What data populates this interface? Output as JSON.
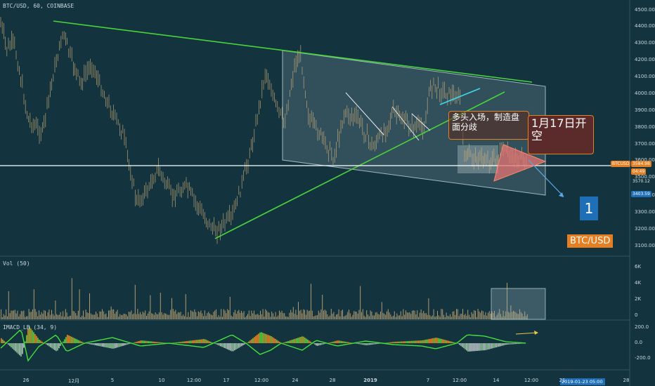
{
  "header": {
    "symbol_line": "BTC/USD, 60, COINBASE"
  },
  "price_axis": {
    "ticks": [
      "4500.00",
      "4400.00",
      "4300.00",
      "4200.00",
      "4100.00",
      "4000.00",
      "3900.00",
      "3800.00",
      "3700.00",
      "3600.00",
      "3500.00",
      "3400.00",
      "3300.00",
      "3200.00",
      "3100.00"
    ]
  },
  "price_tags": {
    "last": "3584.98",
    "symbol": "BTCUSD",
    "countdown": "04:49",
    "level1": "3570.12",
    "level2": "3403.59"
  },
  "annotations": {
    "bull_note": "多头入场，制造盘面分歧",
    "gap_note": "1月17日开空",
    "wave_label": "1",
    "pair_label": "BTC/USD"
  },
  "volume_pane": {
    "title": "Vol (50)",
    "ticks": [
      "6K",
      "4K",
      "2K",
      "0"
    ]
  },
  "macd_pane": {
    "title": "IMACD_LB (34, 9)",
    "ticks": [
      "200.0",
      "0.0",
      "-200.0"
    ]
  },
  "time_axis": {
    "labels": [
      "26",
      "12月",
      "5",
      "10",
      "12:00",
      "17",
      "12:00",
      "24",
      "28",
      "2019",
      "7",
      "12:00",
      "14",
      "12:00",
      "21",
      "28"
    ],
    "cursor_label": "2019-01-23  05:00"
  },
  "colors": {
    "background": "#13343f",
    "candle": "#d9b47a",
    "trendline": "#4bd33a",
    "channel_fill": "#9fb7bf",
    "accent": "#e67e22",
    "cyan_line": "#3fd9e8"
  },
  "icons": {
    "projection_arrow": "arrow-down-right-icon",
    "macd_arrow": "arrow-right-icon"
  }
}
